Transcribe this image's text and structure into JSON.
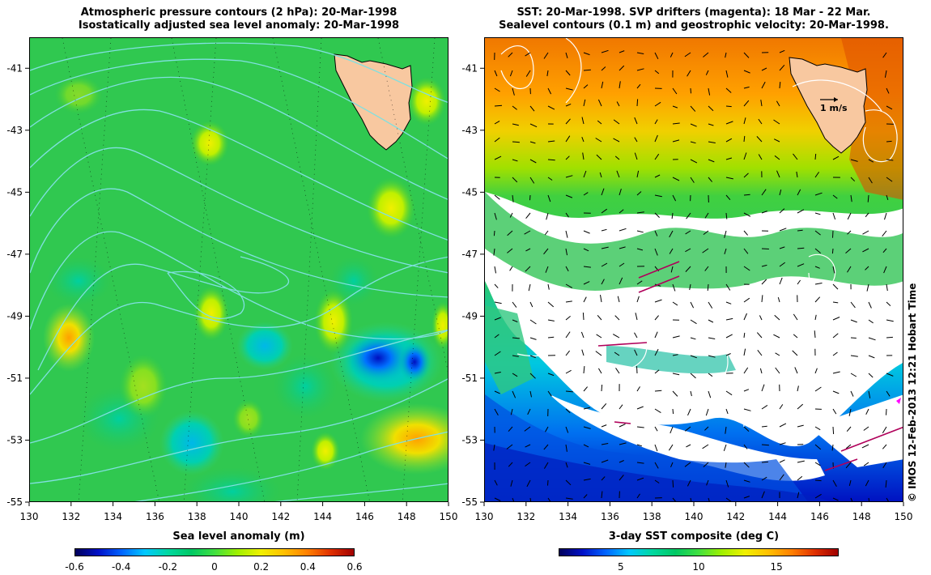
{
  "left_title": {
    "line1": "Atmospheric pressure contours (2 hPa): 20-Mar-1998",
    "line2": "Isostatically adjusted sea level anomaly: 20-Mar-1998"
  },
  "right_title": {
    "line1": "SST: 20-Mar-1998. SVP drifters (magenta): 18 Mar - 22 Mar.",
    "line2": "Sealevel contours (0.1 m) and geostrophic velocity: 20-Mar-1998."
  },
  "axes": {
    "x_ticks": [
      "130",
      "132",
      "134",
      "136",
      "138",
      "140",
      "142",
      "144",
      "146",
      "148",
      "150"
    ],
    "y_ticks": [
      "-41",
      "-43",
      "-45",
      "-47",
      "-49",
      "-51",
      "-53",
      "-55"
    ],
    "xlim": [
      130,
      150
    ],
    "ylim": [
      -55,
      -40
    ]
  },
  "velocity_scale_label": "1 m/s",
  "left_colorbar": {
    "title": "Sea level anomaly (m)",
    "ticks": [
      "-0.6",
      "-0.4",
      "-0.2",
      "0",
      "0.2",
      "0.4",
      "0.6"
    ],
    "range": [
      -0.6,
      0.6
    ]
  },
  "right_colorbar": {
    "title": "3-day SST composite (deg C)",
    "ticks": [
      "5",
      "10",
      "15"
    ],
    "range": [
      1,
      19
    ]
  },
  "copyright": "© IMOS 12-Feb-2013 12:21 Hobart Time",
  "colors": {
    "land": "#f8c8a0",
    "pressure_contours": "#80e0e0",
    "sealevel_contours": "#ffffff",
    "drifters": "#ff00ff",
    "velocity_arrows": "#000000"
  }
}
